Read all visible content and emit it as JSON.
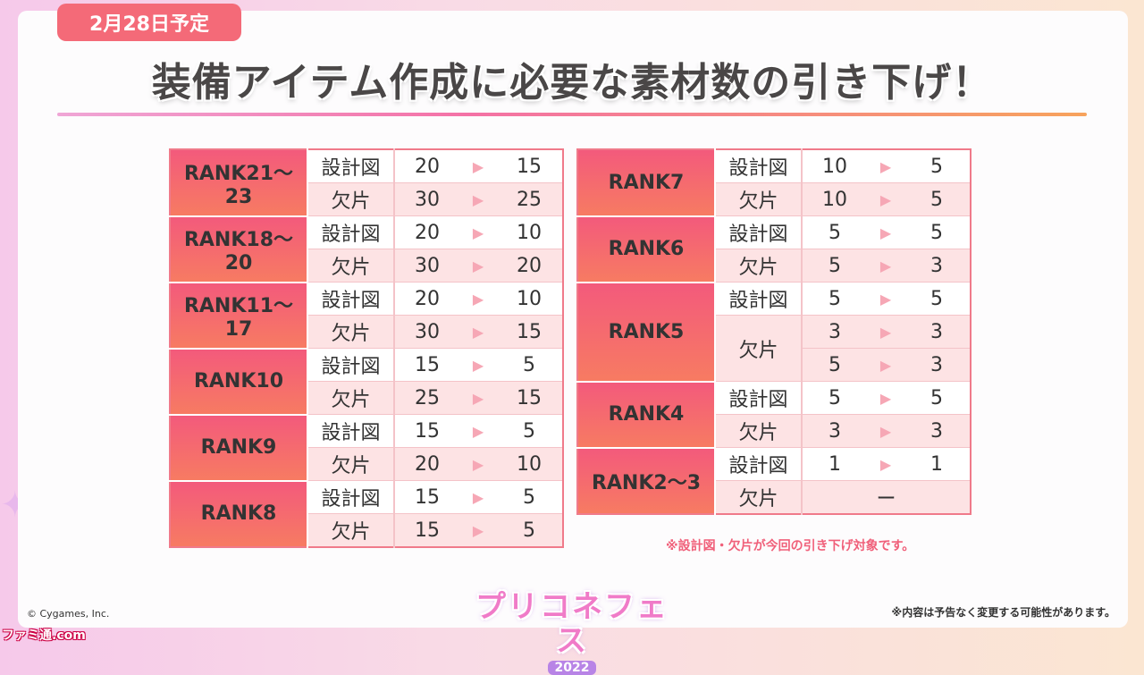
{
  "badge": {
    "date": "2月28日予定"
  },
  "headline": "装備アイテム作成に必要な素材数の引き下げ！",
  "arrow_glyph": "▶",
  "left_table": [
    {
      "rank": "RANK21〜23",
      "rows": [
        {
          "kind": "設計図",
          "from": "20",
          "to": "15"
        },
        {
          "kind": "欠片",
          "from": "30",
          "to": "25"
        }
      ]
    },
    {
      "rank": "RANK18〜20",
      "rows": [
        {
          "kind": "設計図",
          "from": "20",
          "to": "10"
        },
        {
          "kind": "欠片",
          "from": "30",
          "to": "20"
        }
      ]
    },
    {
      "rank": "RANK11〜17",
      "rows": [
        {
          "kind": "設計図",
          "from": "20",
          "to": "10"
        },
        {
          "kind": "欠片",
          "from": "30",
          "to": "15"
        }
      ]
    },
    {
      "rank": "RANK10",
      "rows": [
        {
          "kind": "設計図",
          "from": "15",
          "to": "5"
        },
        {
          "kind": "欠片",
          "from": "25",
          "to": "15"
        }
      ]
    },
    {
      "rank": "RANK9",
      "rows": [
        {
          "kind": "設計図",
          "from": "15",
          "to": "5"
        },
        {
          "kind": "欠片",
          "from": "20",
          "to": "10"
        }
      ]
    },
    {
      "rank": "RANK8",
      "rows": [
        {
          "kind": "設計図",
          "from": "15",
          "to": "5"
        },
        {
          "kind": "欠片",
          "from": "15",
          "to": "5"
        }
      ]
    }
  ],
  "right_table": [
    {
      "rank": "RANK7",
      "rows": [
        {
          "kind": "設計図",
          "from": "10",
          "to": "5"
        },
        {
          "kind": "欠片",
          "from": "10",
          "to": "5"
        }
      ]
    },
    {
      "rank": "RANK6",
      "rows": [
        {
          "kind": "設計図",
          "from": "5",
          "to": "5"
        },
        {
          "kind": "欠片",
          "from": "5",
          "to": "3"
        }
      ]
    },
    {
      "rank": "RANK5",
      "rows": [
        {
          "kind": "設計図",
          "from": "5",
          "to": "5"
        },
        {
          "kind": "欠片",
          "from": "3",
          "to": "3"
        },
        {
          "kind": "",
          "from": "5",
          "to": "3"
        }
      ]
    },
    {
      "rank": "RANK4",
      "rows": [
        {
          "kind": "設計図",
          "from": "5",
          "to": "5"
        },
        {
          "kind": "欠片",
          "from": "3",
          "to": "3"
        }
      ]
    },
    {
      "rank": "RANK2〜3",
      "rows": [
        {
          "kind": "設計図",
          "from": "1",
          "to": "1"
        },
        {
          "kind": "欠片",
          "dash": "ー"
        }
      ]
    }
  ],
  "note": "※設計図・欠片が今回の引き下げ対象です。",
  "footer": {
    "copyright": "© Cygames, Inc.",
    "disclaimer": "※内容は予告なく変更する可能性があります。",
    "logo_text": "プリコネフェス",
    "logo_year": "2022",
    "watermark": "ファミ通.com"
  },
  "colors": {
    "accent": "#f46a78",
    "rank_grad_top": "#f35a7c",
    "rank_grad_bottom": "#f77b62",
    "alt_row": "#fde3e4",
    "arrow": "#f6a7b5"
  }
}
